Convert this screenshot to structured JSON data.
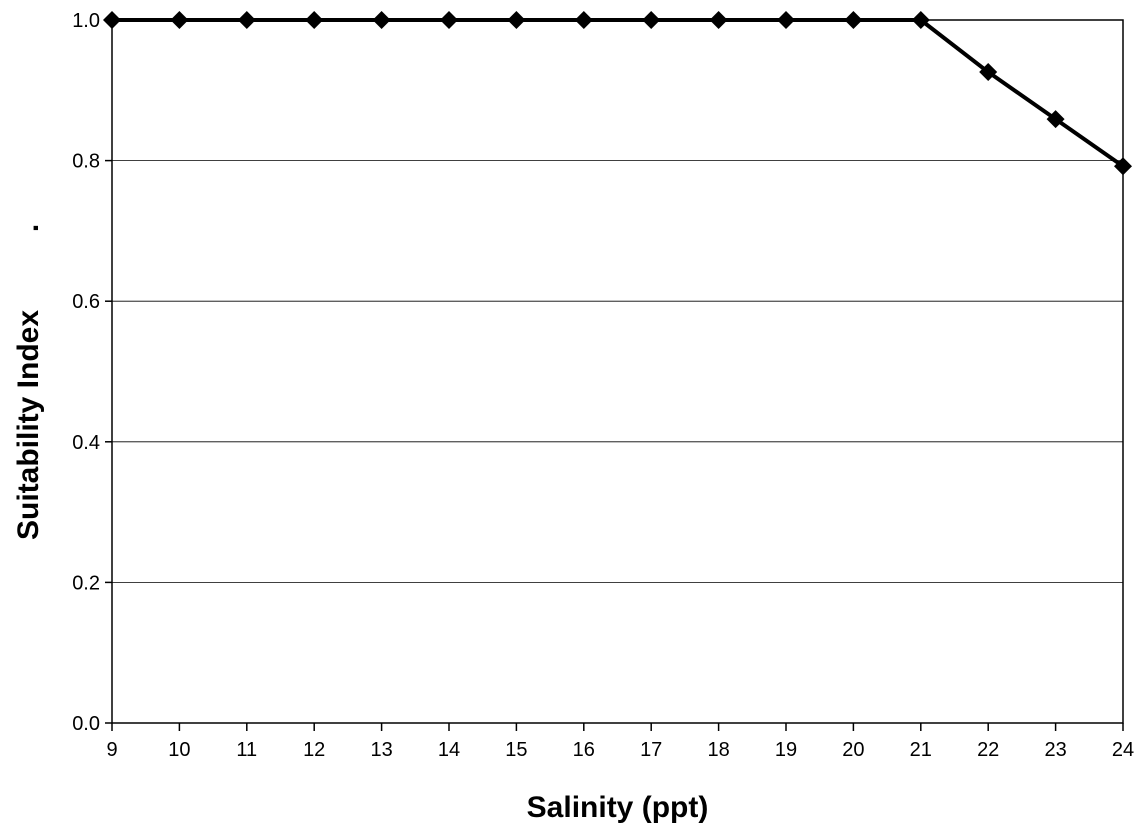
{
  "chart_data": {
    "type": "line",
    "title": "",
    "xlabel": "Salinity (ppt)",
    "ylabel": "Suitability Index",
    "ylabel_suffix": ".",
    "x": [
      9,
      10,
      11,
      12,
      13,
      14,
      15,
      16,
      17,
      18,
      19,
      20,
      21,
      22,
      23,
      24
    ],
    "series": [
      {
        "values": [
          1.0,
          1.0,
          1.0,
          1.0,
          1.0,
          1.0,
          1.0,
          1.0,
          1.0,
          1.0,
          1.0,
          1.0,
          1.0,
          0.926,
          0.859,
          0.792
        ],
        "color": "#000000",
        "marker": "diamond"
      }
    ],
    "xlim": [
      9,
      24
    ],
    "ylim": [
      0.0,
      1.0
    ],
    "xticks": [
      "9",
      "10",
      "11",
      "12",
      "13",
      "14",
      "15",
      "16",
      "17",
      "18",
      "19",
      "20",
      "21",
      "22",
      "23",
      "24"
    ],
    "yticks": [
      "0.0",
      "0.2",
      "0.4",
      "0.6",
      "0.8",
      "1.0"
    ],
    "grid": "horizontal",
    "legend": "none"
  }
}
